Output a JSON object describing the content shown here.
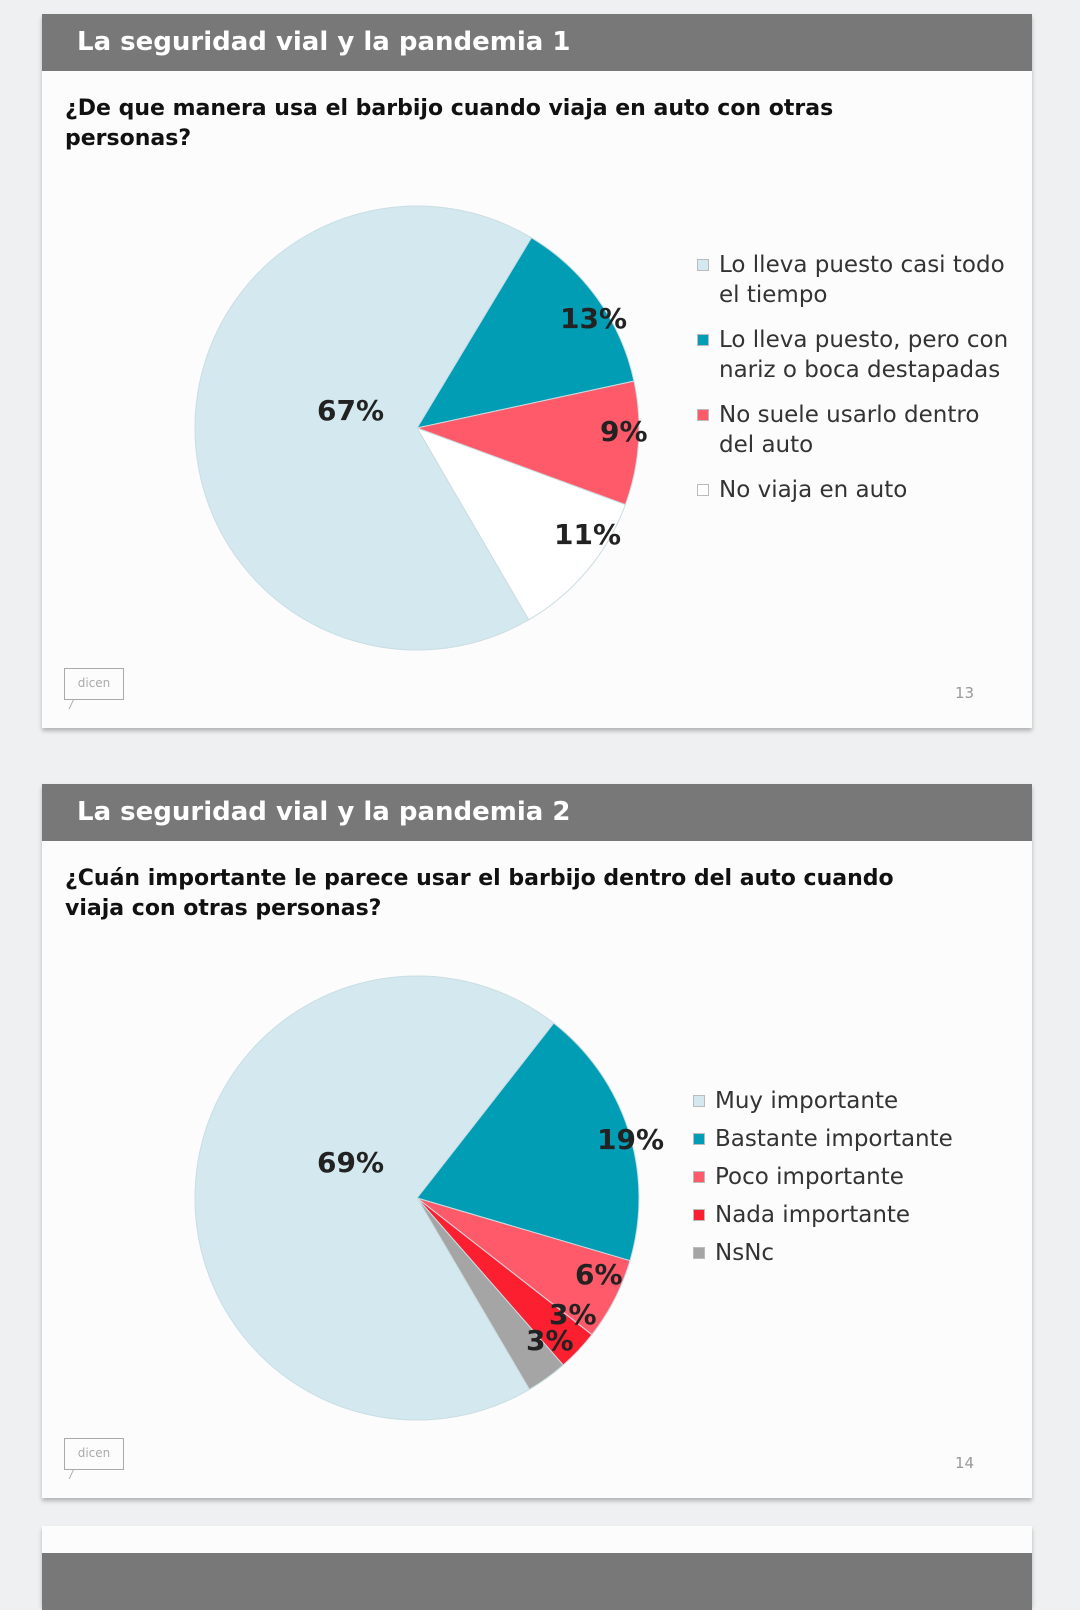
{
  "slides": [
    {
      "title": "La seguridad vial y la pandemia 1",
      "question": "¿De que manera usa el barbijo cuando viaja en auto con otras personas?",
      "page": "13",
      "logo": "dicen",
      "chart_data": {
        "type": "pie",
        "start_angle_deg": 31,
        "slices": [
          {
            "label": "Lo lleva puesto, pero con nariz o boca destapadas",
            "value": 13,
            "text": "13%",
            "color": "#009db5"
          },
          {
            "label": "No suele usarlo dentro del auto",
            "value": 9,
            "text": "9%",
            "color": "#fe5a6a"
          },
          {
            "label": "No viaja en auto",
            "value": 11,
            "text": "11%",
            "color": "#ffffff"
          },
          {
            "label": "Lo lleva puesto casi todo el tiempo",
            "value": 67,
            "text": "67%",
            "color": "#d4e9ef"
          }
        ],
        "legend": [
          {
            "label": "Lo lleva puesto casi todo el tiempo",
            "color": "#d4e9ef"
          },
          {
            "label": "Lo lleva puesto, pero con nariz o boca destapadas",
            "color": "#009db5"
          },
          {
            "label": "No suele usarlo dentro del auto",
            "color": "#fe5a6a"
          },
          {
            "label": "No viaja en auto",
            "color": "#ffffff"
          }
        ]
      }
    },
    {
      "title": "La seguridad vial y la pandemia 2",
      "question": "¿Cuán importante le parece usar el barbijo dentro del auto cuando viaja con otras personas?",
      "page": "14",
      "logo": "dicen",
      "chart_data": {
        "type": "pie",
        "start_angle_deg": 38,
        "slices": [
          {
            "label": "Bastante importante",
            "value": 19,
            "text": "19%",
            "color": "#009db5"
          },
          {
            "label": "Poco importante",
            "value": 6,
            "text": "6%",
            "color": "#fe5a6a"
          },
          {
            "label": "Nada importante",
            "value": 3,
            "text": "3%",
            "color": "#fb1f30"
          },
          {
            "label": "NsNc",
            "value": 3,
            "text": "3%",
            "color": "#a5a5a5"
          },
          {
            "label": "Muy importante",
            "value": 69,
            "text": "69%",
            "color": "#d4e9ef"
          }
        ],
        "legend": [
          {
            "label": "Muy importante",
            "color": "#d4e9ef"
          },
          {
            "label": "Bastante importante",
            "color": "#009db5"
          },
          {
            "label": "Poco importante",
            "color": "#fe5a6a"
          },
          {
            "label": "Nada importante",
            "color": "#fb1f30"
          },
          {
            "label": "NsNc",
            "color": "#a5a5a5"
          }
        ]
      }
    }
  ]
}
